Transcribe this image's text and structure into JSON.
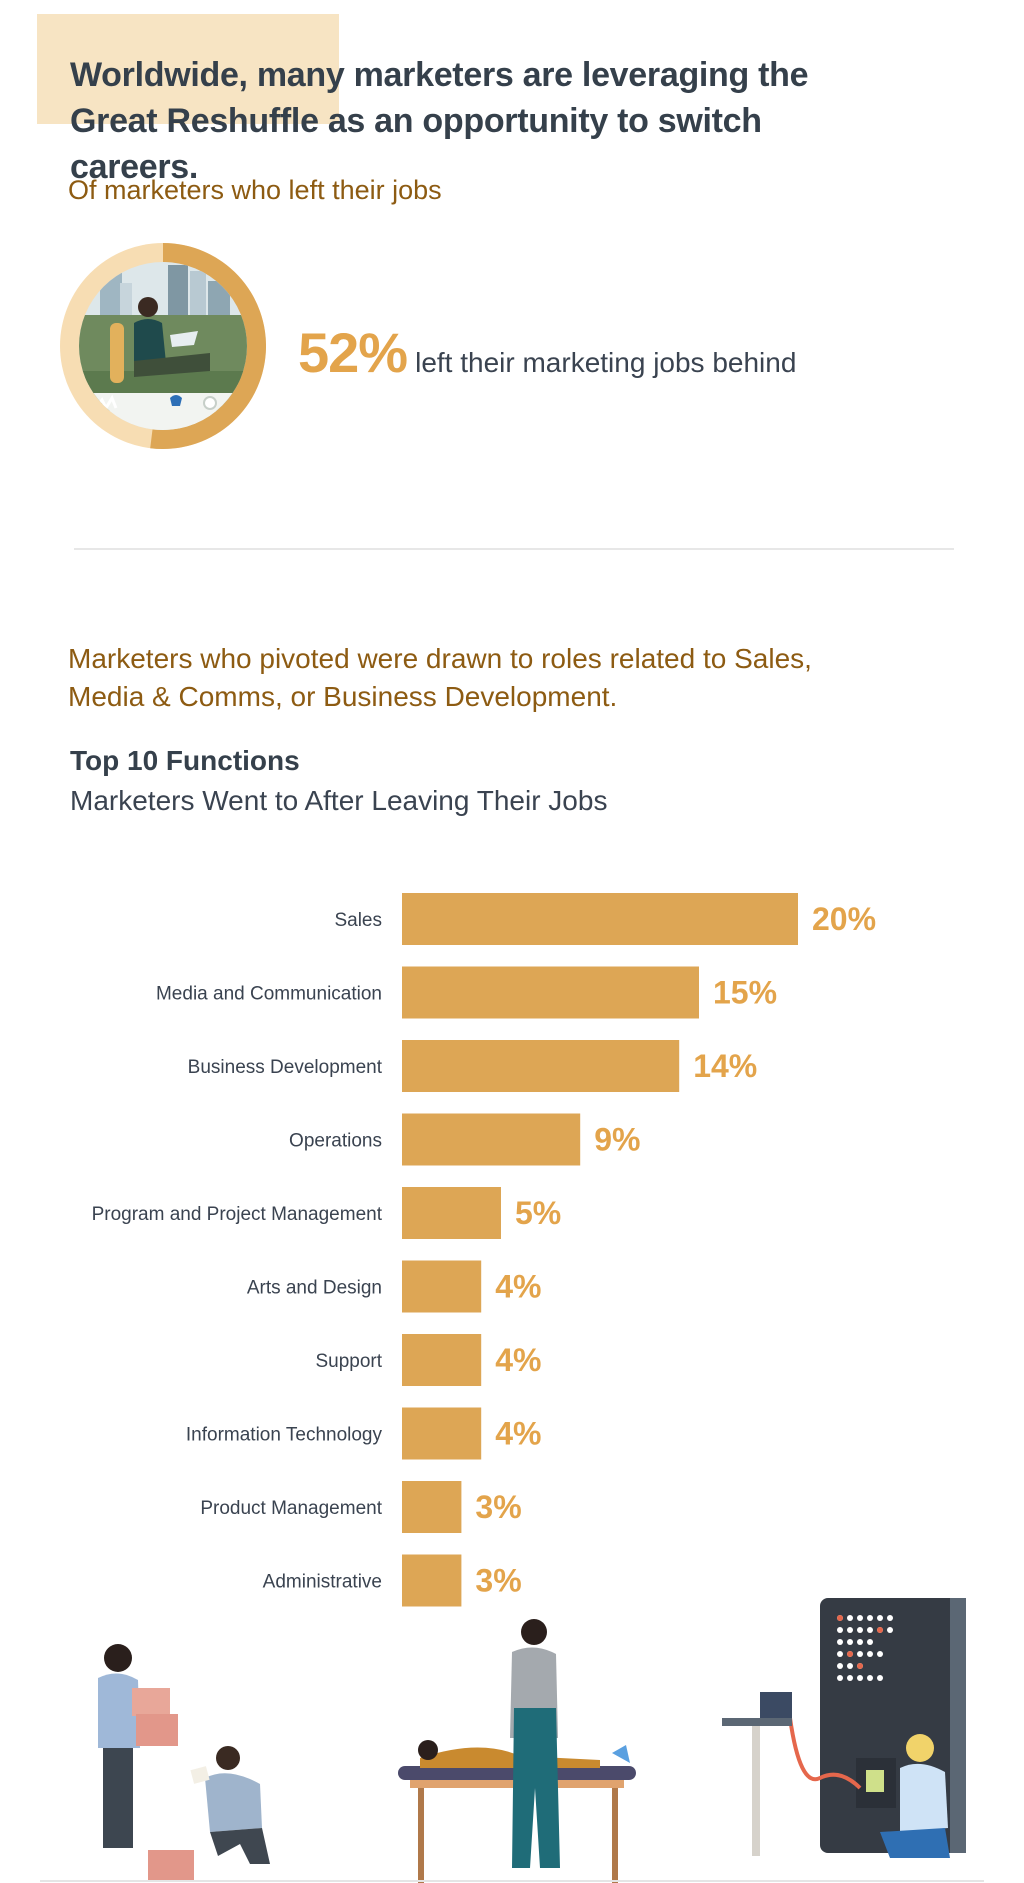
{
  "header": {
    "headline_line1": "Worldwide, many marketers are leveraging the",
    "headline_line2": "Great Reshuffle as an opportunity to switch careers.",
    "subheading": "Of marketers who left their jobs"
  },
  "stat": {
    "value": "52%",
    "text": "left their marketing jobs behind"
  },
  "pivot": {
    "line1": "Marketers who pivoted were drawn to roles related to Sales,",
    "line2": "Media & Comms, or Business Development."
  },
  "chart_title": "Top 10 Functions",
  "chart_subtitle": "Marketers Went to After Leaving Their Jobs",
  "colors": {
    "bar": "#dda655",
    "value_label": "#e3a44b",
    "accent_brown": "#8d5b12",
    "title_highlight": "#f7e4c3",
    "text_dark": "#35404b"
  },
  "chart_data": {
    "type": "bar",
    "orientation": "horizontal",
    "title": "Top 10 Functions",
    "subtitle": "Marketers Went to After Leaving Their Jobs",
    "categories": [
      "Sales",
      "Media and Communication",
      "Business Development",
      "Operations",
      "Program and Project Management",
      "Arts and Design",
      "Support",
      "Information Technology",
      "Product Management",
      "Administrative"
    ],
    "values": [
      20,
      15,
      14,
      9,
      5,
      4,
      4,
      4,
      3,
      3
    ],
    "value_labels": [
      "20%",
      "15%",
      "14%",
      "9%",
      "5%",
      "4%",
      "4%",
      "4%",
      "3%",
      "3%"
    ],
    "unit": "%",
    "grid": false,
    "legend": "none"
  }
}
